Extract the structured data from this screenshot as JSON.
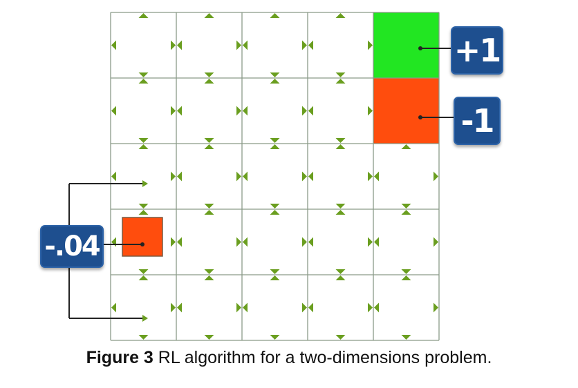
{
  "grid": {
    "columns": 5,
    "rows": 5,
    "goal_cell": {
      "col": 4,
      "row": 0,
      "color": "#22e622"
    },
    "penalty_cell": {
      "col": 4,
      "row": 1,
      "color": "#ff4d0d"
    },
    "agent_color": "#ff4d0d",
    "line_color": "#8a9a88",
    "arrow_color": "#6a9e1f"
  },
  "labels": {
    "goal_reward": "+1",
    "penalty_reward": "-1",
    "step_reward": "-.04"
  },
  "caption": {
    "prefix": "Figure 3",
    "text": " RL algorithm for a two-dimensions problem."
  }
}
